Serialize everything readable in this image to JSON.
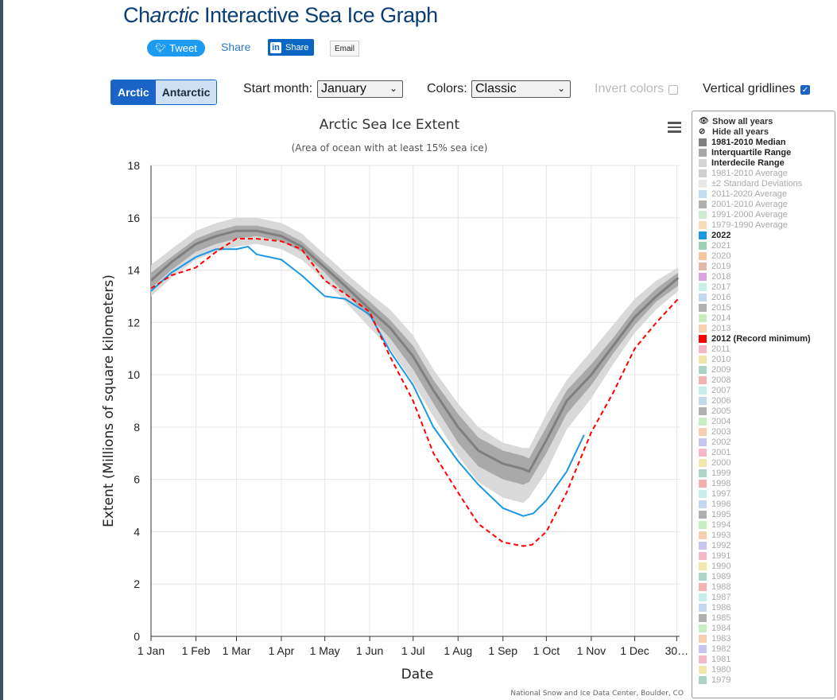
{
  "header": {
    "title_prefix": "Ch",
    "title_italic": "arctic",
    "title_suffix": " Interactive Sea Ice Graph",
    "tweet_label": "Tweet",
    "share_label": "Share",
    "linkedin_label": "Share",
    "email_label": "Email"
  },
  "controls": {
    "region_arctic": "Arctic",
    "region_antarctic": "Antarctic",
    "start_month_label": "Start month:",
    "start_month_value": "January",
    "colors_label": "Colors:",
    "colors_value": "Classic",
    "invert_label": "Invert colors",
    "vgrid_label": "Vertical gridlines"
  },
  "legend": {
    "show_all": "Show all years",
    "hide_all": "Hide all years",
    "items": [
      {
        "label": "1981-2010 Median",
        "color": "#808080",
        "active": true
      },
      {
        "label": "Interquartile Range",
        "color": "#a8a8a8",
        "active": true
      },
      {
        "label": "Interdecile Range",
        "color": "#d4d4d4",
        "active": true
      },
      {
        "label": "1981-2010 Average",
        "color": "#cfcfcf",
        "active": false
      },
      {
        "label": "±2 Standard Deviations",
        "color": "#e8e8e8",
        "active": false
      },
      {
        "label": "2011-2020 Average",
        "color": "#c2dcf2",
        "active": false
      },
      {
        "label": "2001-2010 Average",
        "color": "#b0b0b0",
        "active": false
      },
      {
        "label": "1991-2000 Average",
        "color": "#cdeccd",
        "active": false
      },
      {
        "label": "1979-1990 Average",
        "color": "#f6dcb8",
        "active": false
      },
      {
        "label": "2022",
        "color": "#1a98e6",
        "active": true
      },
      {
        "label": "2021",
        "color": "#9fcfb5",
        "active": false
      },
      {
        "label": "2020",
        "color": "#f5c79c",
        "active": false
      },
      {
        "label": "2019",
        "color": "#e3b8a5",
        "active": false
      },
      {
        "label": "2018",
        "color": "#d9a3e0",
        "active": false
      },
      {
        "label": "2017",
        "color": "#c6f0e8",
        "active": false
      },
      {
        "label": "2016",
        "color": "#c0d8f0",
        "active": false
      },
      {
        "label": "2015",
        "color": "#b0b0b0",
        "active": false
      },
      {
        "label": "2014",
        "color": "#c8eec0",
        "active": false
      },
      {
        "label": "2013",
        "color": "#f7d1b0",
        "active": false
      },
      {
        "label": "2012 (Record minimum)",
        "color": "#ff0000",
        "active": true
      },
      {
        "label": "2011",
        "color": "#f5b8c8",
        "active": false
      },
      {
        "label": "2010",
        "color": "#f2e4a8",
        "active": false
      },
      {
        "label": "2009",
        "color": "#a9d4c7",
        "active": false
      },
      {
        "label": "2008",
        "color": "#f5b0b0",
        "active": false
      },
      {
        "label": "2007",
        "color": "#c6eeea",
        "active": false
      },
      {
        "label": "2006",
        "color": "#c3d7f0",
        "active": false
      },
      {
        "label": "2005",
        "color": "#b0b0b0",
        "active": false
      },
      {
        "label": "2004",
        "color": "#c7edc2",
        "active": false
      },
      {
        "label": "2003",
        "color": "#f7cfae",
        "active": false
      },
      {
        "label": "2002",
        "color": "#c5c5f0",
        "active": false
      },
      {
        "label": "2001",
        "color": "#f5b8c8",
        "active": false
      },
      {
        "label": "2000",
        "color": "#f2e6aa",
        "active": false
      },
      {
        "label": "1999",
        "color": "#a9d4c7",
        "active": false
      },
      {
        "label": "1998",
        "color": "#f5b0b0",
        "active": false
      },
      {
        "label": "1997",
        "color": "#c6eeea",
        "active": false
      },
      {
        "label": "1996",
        "color": "#c3d7f0",
        "active": false
      },
      {
        "label": "1995",
        "color": "#b0b0b0",
        "active": false
      },
      {
        "label": "1994",
        "color": "#c7edc2",
        "active": false
      },
      {
        "label": "1993",
        "color": "#f7cfae",
        "active": false
      },
      {
        "label": "1992",
        "color": "#c5c5f0",
        "active": false
      },
      {
        "label": "1991",
        "color": "#f5b8c8",
        "active": false
      },
      {
        "label": "1990",
        "color": "#f2e6aa",
        "active": false
      },
      {
        "label": "1989",
        "color": "#a9d4c7",
        "active": false
      },
      {
        "label": "1988",
        "color": "#f5b0b0",
        "active": false
      },
      {
        "label": "1987",
        "color": "#c6eeea",
        "active": false
      },
      {
        "label": "1986",
        "color": "#c3d7f0",
        "active": false
      },
      {
        "label": "1985",
        "color": "#b0b0b0",
        "active": false
      },
      {
        "label": "1984",
        "color": "#c7edc2",
        "active": false
      },
      {
        "label": "1983",
        "color": "#f7cfae",
        "active": false
      },
      {
        "label": "1982",
        "color": "#c5c5f0",
        "active": false
      },
      {
        "label": "1981",
        "color": "#f5b8c8",
        "active": false
      },
      {
        "label": "1980",
        "color": "#f2e6aa",
        "active": false
      },
      {
        "label": "1979",
        "color": "#a9d4c7",
        "active": false
      }
    ]
  },
  "chart_data": {
    "type": "line",
    "title": "Arctic Sea Ice Extent",
    "subtitle": "(Area of ocean with at least 15% sea ice)",
    "xlabel": "Date",
    "ylabel": "Extent (Millions of square kilometers)",
    "credit": "National Snow and Ice Data Center, Boulder, CO",
    "ylim": [
      0,
      18
    ],
    "yticks": [
      0,
      2,
      4,
      6,
      8,
      10,
      12,
      14,
      16,
      18
    ],
    "xlim": [
      1,
      366
    ],
    "xticks": [
      {
        "day": 1,
        "label": "1 Jan"
      },
      {
        "day": 32,
        "label": "1 Feb"
      },
      {
        "day": 60,
        "label": "1 Mar"
      },
      {
        "day": 91,
        "label": "1 Apr"
      },
      {
        "day": 121,
        "label": "1 May"
      },
      {
        "day": 152,
        "label": "1 Jun"
      },
      {
        "day": 182,
        "label": "1 Jul"
      },
      {
        "day": 213,
        "label": "1 Aug"
      },
      {
        "day": 244,
        "label": "1 Sep"
      },
      {
        "day": 274,
        "label": "1 Oct"
      },
      {
        "day": 305,
        "label": "1 Nov"
      },
      {
        "day": 335,
        "label": "1 Dec"
      },
      {
        "day": 364,
        "label": "30…"
      }
    ],
    "vertical_gridlines": true,
    "x": [
      1,
      15,
      32,
      46,
      60,
      74,
      91,
      105,
      121,
      135,
      152,
      166,
      182,
      196,
      213,
      227,
      244,
      258,
      262,
      274,
      288,
      305,
      320,
      335,
      350,
      365
    ],
    "median": [
      13.6,
      14.3,
      15.0,
      15.3,
      15.5,
      15.5,
      15.3,
      14.9,
      14.1,
      13.4,
      12.5,
      11.8,
      10.7,
      9.4,
      8.0,
      7.1,
      6.6,
      6.4,
      6.3,
      7.5,
      9.0,
      10.0,
      11.1,
      12.2,
      13.0,
      13.7
    ],
    "iqr_low": [
      13.3,
      14.0,
      14.7,
      15.0,
      15.2,
      15.3,
      15.1,
      14.7,
      13.9,
      13.1,
      12.2,
      11.4,
      10.2,
      8.9,
      7.4,
      6.5,
      6.0,
      5.8,
      5.9,
      7.0,
      8.5,
      9.6,
      10.8,
      11.9,
      12.8,
      13.4
    ],
    "iqr_high": [
      13.9,
      14.5,
      15.2,
      15.5,
      15.7,
      15.7,
      15.5,
      15.1,
      14.3,
      13.6,
      12.8,
      12.1,
      11.1,
      9.8,
      8.5,
      7.6,
      7.1,
      6.9,
      6.8,
      8.0,
      9.4,
      10.4,
      11.4,
      12.5,
      13.3,
      13.9
    ],
    "idr_low": [
      13.0,
      13.7,
      14.4,
      14.7,
      14.9,
      15.0,
      14.8,
      14.4,
      13.6,
      12.8,
      11.8,
      11.0,
      9.7,
      8.4,
      6.9,
      5.9,
      5.3,
      5.1,
      5.3,
      6.3,
      7.9,
      9.1,
      10.4,
      11.6,
      12.5,
      13.2
    ],
    "idr_high": [
      14.2,
      14.8,
      15.5,
      15.8,
      16.0,
      16.0,
      15.8,
      15.4,
      14.6,
      13.9,
      13.1,
      12.5,
      11.5,
      10.2,
      8.9,
      8.0,
      7.4,
      7.2,
      7.2,
      8.5,
      9.8,
      10.9,
      11.9,
      12.9,
      13.6,
      14.1
    ],
    "series": [
      {
        "name": "2022",
        "color": "#1a98e6",
        "dash": false,
        "x": [
          1,
          15,
          32,
          46,
          60,
          68,
          74,
          91,
          105,
          121,
          135,
          152,
          166,
          182,
          196,
          213,
          227,
          244,
          258,
          265,
          274,
          288,
          300
        ],
        "values": [
          13.2,
          13.9,
          14.5,
          14.8,
          14.8,
          14.9,
          14.6,
          14.4,
          13.8,
          13.0,
          12.9,
          12.3,
          10.9,
          9.6,
          8.0,
          6.7,
          5.8,
          4.9,
          4.6,
          4.7,
          5.2,
          6.3,
          7.7
        ]
      },
      {
        "name": "2012 (Record minimum)",
        "color": "#ff0000",
        "dash": true,
        "x": [
          1,
          15,
          32,
          46,
          60,
          74,
          91,
          105,
          121,
          135,
          152,
          166,
          182,
          196,
          213,
          227,
          244,
          258,
          264,
          274,
          288,
          305,
          320,
          335,
          350,
          365
        ],
        "values": [
          13.3,
          13.8,
          14.1,
          14.7,
          15.2,
          15.2,
          15.1,
          14.8,
          13.6,
          13.1,
          12.4,
          10.7,
          9.0,
          7.0,
          5.5,
          4.3,
          3.6,
          3.45,
          3.5,
          4.0,
          5.5,
          7.8,
          9.3,
          11.0,
          12.0,
          12.9
        ]
      }
    ]
  }
}
